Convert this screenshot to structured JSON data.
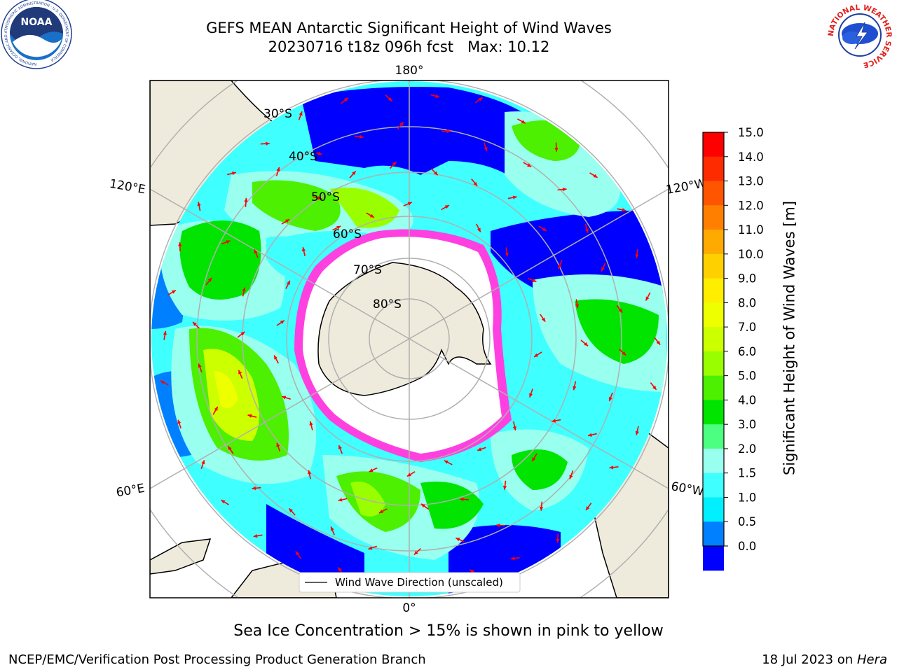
{
  "header": {
    "title_line1": "GEFS MEAN Antarctic Significant Height of Wind Waves",
    "title_line2": "20230716 t18z 096h fcst   Max: 10.12"
  },
  "logos": {
    "noaa_text": "NOAA",
    "noaa_ring_text": "NATIONAL OCEANIC AND ATMOSPHERIC ADMINISTRATION · U.S. DEPARTMENT OF COMMERCE",
    "nws_ring_text": "NATIONAL WEATHER SERVICE"
  },
  "map": {
    "longitude_labels": {
      "top": "180°",
      "bottom": "0°",
      "upper_left": "120°E",
      "upper_right": "120°W",
      "lower_left": "60°E",
      "lower_right": "60°W"
    },
    "latitude_labels": [
      "30°S",
      "40°S",
      "50°S",
      "60°S",
      "70°S",
      "80°S"
    ],
    "legend": "Wind Wave Direction (unscaled)",
    "land_color": "#efebdc",
    "arrow_color": "#ff0000"
  },
  "colorbar": {
    "label": "Significant Height of Wind Waves [m]",
    "ticks": [
      "15.0",
      "14.0",
      "13.0",
      "12.0",
      "11.0",
      "10.0",
      "9.0",
      "8.0",
      "7.0",
      "6.0",
      "5.0",
      "4.0",
      "3.0",
      "2.0",
      "1.5",
      "1.0",
      "0.5",
      "0.0"
    ],
    "colors_top_to_bottom": [
      "#ff0000",
      "#ff2b00",
      "#ff5500",
      "#ff8000",
      "#ffaa00",
      "#ffd000",
      "#ffee00",
      "#eeff00",
      "#ccff00",
      "#99ff00",
      "#4cf000",
      "#00e400",
      "#4cff80",
      "#99ffee",
      "#40ffff",
      "#00f0ff",
      "#0080ff",
      "#0000ff"
    ]
  },
  "footer": {
    "sea_ice_note": "Sea Ice Concentration > 15% is shown in pink to yellow",
    "left": "NCEP/EMC/Verification Post Processing Product Generation Branch",
    "right_date": "18 Jul 2023 on ",
    "right_host": "Hera"
  }
}
